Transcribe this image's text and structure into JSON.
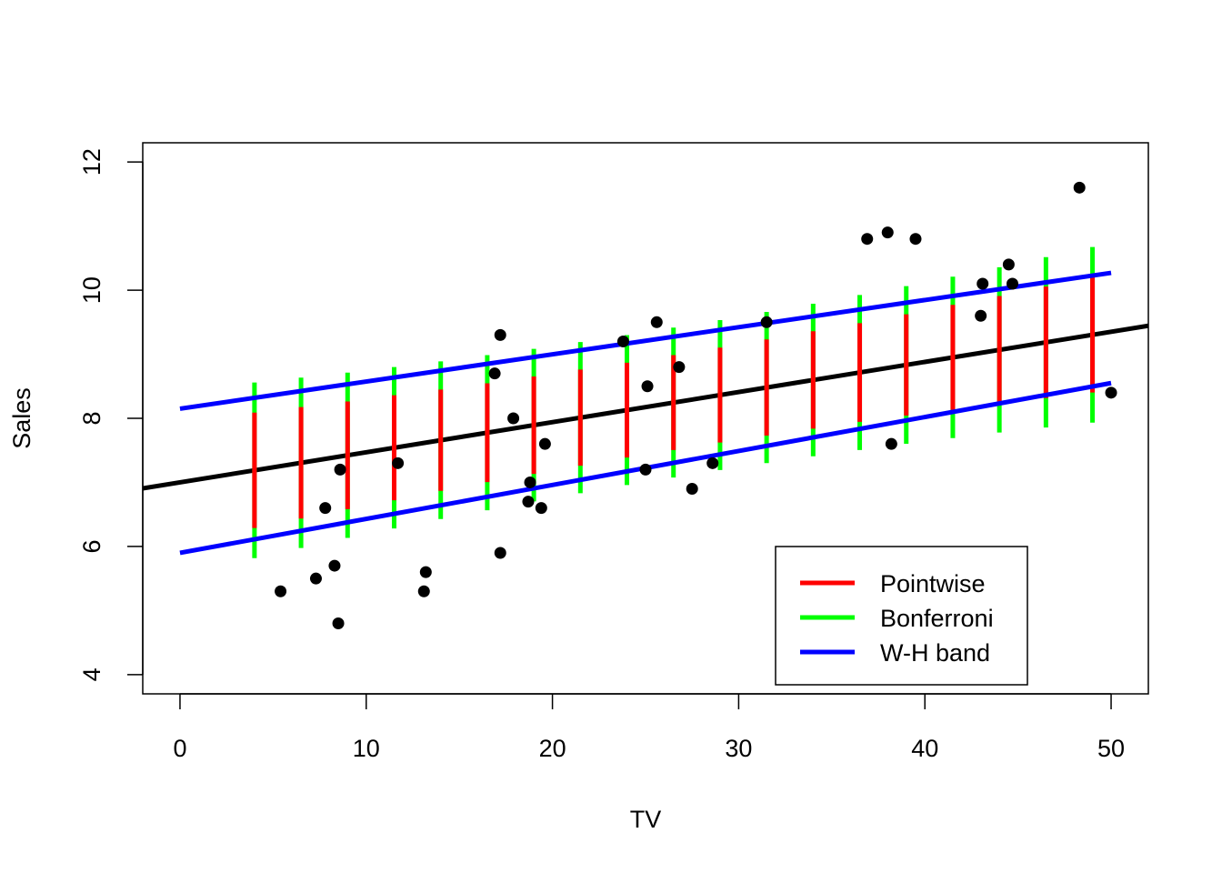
{
  "chart_data": {
    "type": "scatter",
    "title": "",
    "xlabel": "TV",
    "ylabel": "Sales",
    "xlim": [
      -2,
      52
    ],
    "ylim": [
      3.7,
      12.3
    ],
    "x_ticks": [
      0,
      10,
      20,
      30,
      40,
      50
    ],
    "y_ticks": [
      4,
      6,
      8,
      10,
      12
    ],
    "x_tick_labels": [
      "0",
      "10",
      "20",
      "30",
      "40",
      "50"
    ],
    "y_tick_labels": [
      "4",
      "6",
      "8",
      "10",
      "12"
    ],
    "grid": false,
    "legend_position": "bottom-right",
    "points": [
      {
        "x": 5.4,
        "y": 5.3
      },
      {
        "x": 7.3,
        "y": 5.5
      },
      {
        "x": 7.8,
        "y": 6.6
      },
      {
        "x": 8.3,
        "y": 5.7
      },
      {
        "x": 8.5,
        "y": 4.8
      },
      {
        "x": 8.6,
        "y": 7.2
      },
      {
        "x": 11.7,
        "y": 7.3
      },
      {
        "x": 13.1,
        "y": 5.3
      },
      {
        "x": 13.2,
        "y": 5.6
      },
      {
        "x": 16.9,
        "y": 8.7
      },
      {
        "x": 17.2,
        "y": 9.3
      },
      {
        "x": 17.2,
        "y": 5.9
      },
      {
        "x": 17.9,
        "y": 8.0
      },
      {
        "x": 18.7,
        "y": 6.7
      },
      {
        "x": 18.8,
        "y": 7.0
      },
      {
        "x": 19.4,
        "y": 6.6
      },
      {
        "x": 19.6,
        "y": 7.6
      },
      {
        "x": 23.8,
        "y": 9.2
      },
      {
        "x": 25.1,
        "y": 8.5
      },
      {
        "x": 25.0,
        "y": 7.2
      },
      {
        "x": 25.6,
        "y": 9.5
      },
      {
        "x": 26.8,
        "y": 8.8
      },
      {
        "x": 27.5,
        "y": 6.9
      },
      {
        "x": 28.6,
        "y": 7.3
      },
      {
        "x": 31.5,
        "y": 9.5
      },
      {
        "x": 36.9,
        "y": 10.8
      },
      {
        "x": 38.0,
        "y": 10.9
      },
      {
        "x": 38.2,
        "y": 7.6
      },
      {
        "x": 39.5,
        "y": 10.8
      },
      {
        "x": 43.0,
        "y": 9.6
      },
      {
        "x": 43.1,
        "y": 10.1
      },
      {
        "x": 44.5,
        "y": 10.4
      },
      {
        "x": 44.7,
        "y": 10.1
      },
      {
        "x": 48.3,
        "y": 11.6
      },
      {
        "x": 50.0,
        "y": 8.4
      }
    ],
    "fit_line": {
      "intercept": 7.0,
      "slope": 0.047
    },
    "wh_band": {
      "x_from": 0,
      "x_to": 50,
      "upper": [
        8.15,
        10.27
      ],
      "lower": [
        5.9,
        8.55
      ]
    },
    "intervals_x": [
      4,
      6.5,
      9,
      11.5,
      14,
      16.5,
      19,
      21.5,
      24,
      26.5,
      29,
      31.5,
      34,
      36.5,
      39,
      41.5,
      44,
      46.5,
      49
    ],
    "bonferroni_halfwidth": [
      1.37,
      1.33,
      1.29,
      1.26,
      1.23,
      1.21,
      1.19,
      1.18,
      1.17,
      1.17,
      1.17,
      1.18,
      1.19,
      1.21,
      1.23,
      1.26,
      1.29,
      1.33,
      1.37
    ],
    "pointwise_halfwidth": [
      0.9,
      0.87,
      0.84,
      0.82,
      0.79,
      0.77,
      0.76,
      0.75,
      0.74,
      0.74,
      0.74,
      0.75,
      0.76,
      0.77,
      0.79,
      0.82,
      0.84,
      0.87,
      0.9
    ],
    "series": [
      {
        "name": "Pointwise",
        "color": "#ff0000"
      },
      {
        "name": "Bonferroni",
        "color": "#00ff00"
      },
      {
        "name": "W-H band",
        "color": "#0000ff"
      }
    ],
    "fit_color": "#000000",
    "point_color": "#000000"
  }
}
